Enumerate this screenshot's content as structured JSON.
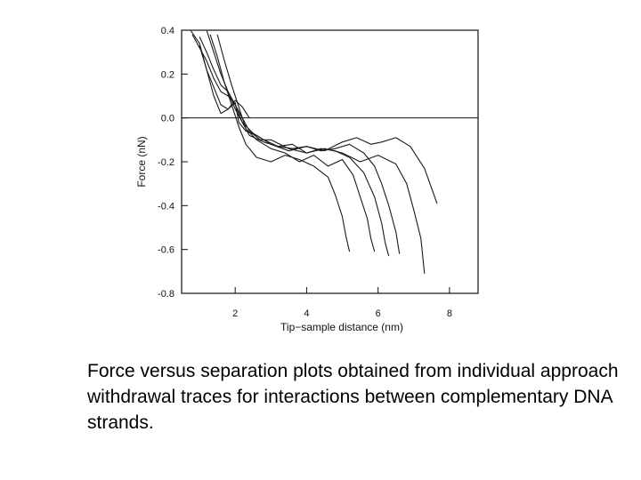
{
  "caption": "Force versus separation plots obtained from individual approach withdrawal traces for interactions between complementary DNA strands.",
  "chart_data": {
    "type": "line",
    "xlabel": "Tip−sample distance (nm)",
    "ylabel": "Force (nN)",
    "xlim": [
      0.5,
      8.8
    ],
    "ylim": [
      -0.8,
      0.4
    ],
    "xticks": [
      2,
      4,
      6,
      8
    ],
    "xtick_labels": [
      "2",
      "4",
      "6",
      "8"
    ],
    "yticks": [
      0.4,
      0.2,
      0.0,
      -0.2,
      -0.4,
      -0.6,
      -0.8
    ],
    "ytick_labels": [
      "0.4",
      "0.2",
      "0.0",
      "-0.2",
      "-0.4",
      "-0.6",
      "-0.8"
    ],
    "zero_line": true,
    "grid": false,
    "line_color": "#1a1a1a",
    "series": [
      {
        "x": [
          0.75,
          1.0,
          1.2,
          1.45,
          1.6,
          1.8,
          2.0,
          2.1,
          2.3,
          2.6,
          3.0,
          3.5,
          4.0,
          4.5,
          5.0,
          5.4,
          5.8,
          6.1,
          6.5,
          6.9,
          7.3,
          7.65
        ],
        "y": [
          0.4,
          0.34,
          0.22,
          0.12,
          0.06,
          0.04,
          0.07,
          -0.02,
          -0.06,
          -0.08,
          -0.12,
          -0.15,
          -0.13,
          -0.15,
          -0.11,
          -0.09,
          -0.12,
          -0.11,
          -0.09,
          -0.13,
          -0.23,
          -0.39
        ]
      },
      {
        "x": [
          0.8,
          1.0,
          1.2,
          1.4,
          1.6,
          1.8,
          2.0,
          2.2,
          2.4,
          2.7,
          3.0,
          3.5,
          4.0,
          4.5,
          5.0,
          5.5,
          6.0,
          6.5,
          6.8,
          7.0,
          7.2,
          7.3
        ],
        "y": [
          0.38,
          0.32,
          0.26,
          0.18,
          0.12,
          0.1,
          0.06,
          0.0,
          -0.06,
          -0.1,
          -0.1,
          -0.14,
          -0.16,
          -0.14,
          -0.16,
          -0.2,
          -0.17,
          -0.21,
          -0.3,
          -0.42,
          -0.55,
          -0.71
        ]
      },
      {
        "x": [
          1.0,
          1.2,
          1.4,
          1.6,
          1.8,
          2.0,
          2.2,
          2.5,
          2.8,
          3.2,
          3.6,
          4.0,
          4.4,
          4.8,
          5.2,
          5.6,
          5.9,
          6.1,
          6.3,
          6.5,
          6.6
        ],
        "y": [
          0.37,
          0.3,
          0.22,
          0.15,
          0.12,
          0.04,
          -0.02,
          -0.07,
          -0.1,
          -0.13,
          -0.14,
          -0.13,
          -0.15,
          -0.14,
          -0.12,
          -0.16,
          -0.22,
          -0.3,
          -0.4,
          -0.52,
          -0.62
        ]
      },
      {
        "x": [
          1.2,
          1.4,
          1.6,
          1.8,
          2.0,
          2.2,
          2.4,
          2.8,
          3.2,
          3.6,
          4.0,
          4.4,
          4.8,
          5.2,
          5.6,
          5.9,
          6.1,
          6.2,
          6.3
        ],
        "y": [
          0.4,
          0.3,
          0.2,
          0.12,
          0.06,
          -0.02,
          -0.08,
          -0.11,
          -0.13,
          -0.12,
          -0.16,
          -0.14,
          -0.15,
          -0.18,
          -0.25,
          -0.36,
          -0.48,
          -0.57,
          -0.63
        ]
      },
      {
        "x": [
          1.5,
          1.7,
          1.9,
          2.1,
          2.3,
          2.6,
          3.0,
          3.4,
          3.8,
          4.2,
          4.6,
          5.0,
          5.3,
          5.5,
          5.7,
          5.8,
          5.9
        ],
        "y": [
          0.38,
          0.26,
          0.15,
          0.05,
          -0.05,
          -0.1,
          -0.14,
          -0.16,
          -0.2,
          -0.17,
          -0.22,
          -0.19,
          -0.26,
          -0.36,
          -0.46,
          -0.55,
          -0.61
        ]
      },
      {
        "x": [
          1.3,
          1.5,
          1.7,
          1.9,
          2.1,
          2.3,
          2.6,
          3.0,
          3.4,
          3.8,
          4.2,
          4.6,
          4.8,
          5.0,
          5.1,
          5.2
        ],
        "y": [
          0.38,
          0.28,
          0.16,
          0.06,
          -0.04,
          -0.12,
          -0.18,
          -0.2,
          -0.17,
          -0.19,
          -0.22,
          -0.27,
          -0.35,
          -0.45,
          -0.54,
          -0.61
        ]
      },
      {
        "x": [
          1.0,
          1.2,
          1.4,
          1.6,
          1.8,
          2.0,
          2.2,
          2.4
        ],
        "y": [
          0.33,
          0.22,
          0.1,
          0.02,
          0.04,
          0.08,
          0.05,
          0.0
        ]
      }
    ]
  }
}
